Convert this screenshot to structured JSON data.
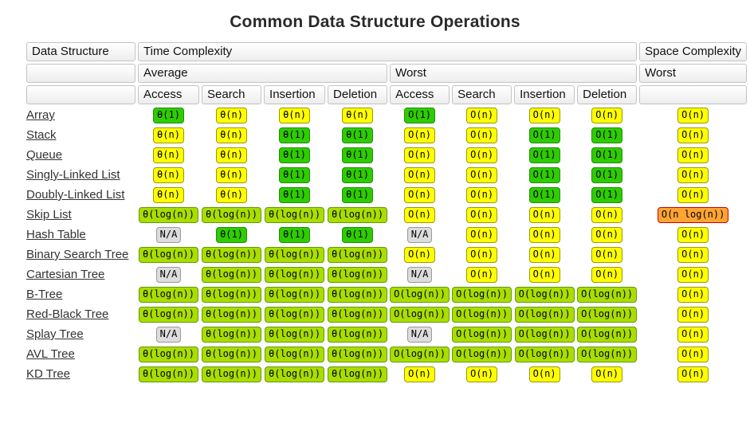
{
  "page": {
    "title": "Common Data Structure Operations"
  },
  "colors": {
    "green": {
      "bg": "#2ecc00",
      "border": "#1d8f00"
    },
    "yellowgreen": {
      "bg": "#aadd00",
      "border": "#5f9b00"
    },
    "yellow": {
      "bg": "#ffff00",
      "border": "#999900"
    },
    "orange": {
      "bg": "#ffa433",
      "border": "#cc0000"
    },
    "gray": {
      "bg": "#dddddd",
      "border": "#999999"
    }
  },
  "table": {
    "headers": {
      "data_structure": "Data Structure",
      "time_complexity": "Time Complexity",
      "space_complexity": "Space Complexity",
      "average": "Average",
      "worst": "Worst",
      "space_worst": "Worst",
      "operations": [
        "Access",
        "Search",
        "Insertion",
        "Deletion"
      ]
    },
    "rows": [
      {
        "name": "Array",
        "average": [
          {
            "text": "θ(1)",
            "color": "green"
          },
          {
            "text": "θ(n)",
            "color": "yellow"
          },
          {
            "text": "θ(n)",
            "color": "yellow"
          },
          {
            "text": "θ(n)",
            "color": "yellow"
          }
        ],
        "worst": [
          {
            "text": "O(1)",
            "color": "green"
          },
          {
            "text": "O(n)",
            "color": "yellow"
          },
          {
            "text": "O(n)",
            "color": "yellow"
          },
          {
            "text": "O(n)",
            "color": "yellow"
          }
        ],
        "space": {
          "text": "O(n)",
          "color": "yellow"
        }
      },
      {
        "name": "Stack",
        "average": [
          {
            "text": "θ(n)",
            "color": "yellow"
          },
          {
            "text": "θ(n)",
            "color": "yellow"
          },
          {
            "text": "θ(1)",
            "color": "green"
          },
          {
            "text": "θ(1)",
            "color": "green"
          }
        ],
        "worst": [
          {
            "text": "O(n)",
            "color": "yellow"
          },
          {
            "text": "O(n)",
            "color": "yellow"
          },
          {
            "text": "O(1)",
            "color": "green"
          },
          {
            "text": "O(1)",
            "color": "green"
          }
        ],
        "space": {
          "text": "O(n)",
          "color": "yellow"
        }
      },
      {
        "name": "Queue",
        "average": [
          {
            "text": "θ(n)",
            "color": "yellow"
          },
          {
            "text": "θ(n)",
            "color": "yellow"
          },
          {
            "text": "θ(1)",
            "color": "green"
          },
          {
            "text": "θ(1)",
            "color": "green"
          }
        ],
        "worst": [
          {
            "text": "O(n)",
            "color": "yellow"
          },
          {
            "text": "O(n)",
            "color": "yellow"
          },
          {
            "text": "O(1)",
            "color": "green"
          },
          {
            "text": "O(1)",
            "color": "green"
          }
        ],
        "space": {
          "text": "O(n)",
          "color": "yellow"
        }
      },
      {
        "name": "Singly-Linked List",
        "average": [
          {
            "text": "θ(n)",
            "color": "yellow"
          },
          {
            "text": "θ(n)",
            "color": "yellow"
          },
          {
            "text": "θ(1)",
            "color": "green"
          },
          {
            "text": "θ(1)",
            "color": "green"
          }
        ],
        "worst": [
          {
            "text": "O(n)",
            "color": "yellow"
          },
          {
            "text": "O(n)",
            "color": "yellow"
          },
          {
            "text": "O(1)",
            "color": "green"
          },
          {
            "text": "O(1)",
            "color": "green"
          }
        ],
        "space": {
          "text": "O(n)",
          "color": "yellow"
        }
      },
      {
        "name": "Doubly-Linked List",
        "average": [
          {
            "text": "θ(n)",
            "color": "yellow"
          },
          {
            "text": "θ(n)",
            "color": "yellow"
          },
          {
            "text": "θ(1)",
            "color": "green"
          },
          {
            "text": "θ(1)",
            "color": "green"
          }
        ],
        "worst": [
          {
            "text": "O(n)",
            "color": "yellow"
          },
          {
            "text": "O(n)",
            "color": "yellow"
          },
          {
            "text": "O(1)",
            "color": "green"
          },
          {
            "text": "O(1)",
            "color": "green"
          }
        ],
        "space": {
          "text": "O(n)",
          "color": "yellow"
        }
      },
      {
        "name": "Skip List",
        "average": [
          {
            "text": "θ(log(n))",
            "color": "yellowgreen"
          },
          {
            "text": "θ(log(n))",
            "color": "yellowgreen"
          },
          {
            "text": "θ(log(n))",
            "color": "yellowgreen"
          },
          {
            "text": "θ(log(n))",
            "color": "yellowgreen"
          }
        ],
        "worst": [
          {
            "text": "O(n)",
            "color": "yellow"
          },
          {
            "text": "O(n)",
            "color": "yellow"
          },
          {
            "text": "O(n)",
            "color": "yellow"
          },
          {
            "text": "O(n)",
            "color": "yellow"
          }
        ],
        "space": {
          "text": "O(n log(n))",
          "color": "orange"
        }
      },
      {
        "name": "Hash Table",
        "average": [
          {
            "text": "N/A",
            "color": "gray"
          },
          {
            "text": "θ(1)",
            "color": "green"
          },
          {
            "text": "θ(1)",
            "color": "green"
          },
          {
            "text": "θ(1)",
            "color": "green"
          }
        ],
        "worst": [
          {
            "text": "N/A",
            "color": "gray"
          },
          {
            "text": "O(n)",
            "color": "yellow"
          },
          {
            "text": "O(n)",
            "color": "yellow"
          },
          {
            "text": "O(n)",
            "color": "yellow"
          }
        ],
        "space": {
          "text": "O(n)",
          "color": "yellow"
        }
      },
      {
        "name": "Binary Search Tree",
        "average": [
          {
            "text": "θ(log(n))",
            "color": "yellowgreen"
          },
          {
            "text": "θ(log(n))",
            "color": "yellowgreen"
          },
          {
            "text": "θ(log(n))",
            "color": "yellowgreen"
          },
          {
            "text": "θ(log(n))",
            "color": "yellowgreen"
          }
        ],
        "worst": [
          {
            "text": "O(n)",
            "color": "yellow"
          },
          {
            "text": "O(n)",
            "color": "yellow"
          },
          {
            "text": "O(n)",
            "color": "yellow"
          },
          {
            "text": "O(n)",
            "color": "yellow"
          }
        ],
        "space": {
          "text": "O(n)",
          "color": "yellow"
        }
      },
      {
        "name": "Cartesian Tree",
        "average": [
          {
            "text": "N/A",
            "color": "gray"
          },
          {
            "text": "θ(log(n))",
            "color": "yellowgreen"
          },
          {
            "text": "θ(log(n))",
            "color": "yellowgreen"
          },
          {
            "text": "θ(log(n))",
            "color": "yellowgreen"
          }
        ],
        "worst": [
          {
            "text": "N/A",
            "color": "gray"
          },
          {
            "text": "O(n)",
            "color": "yellow"
          },
          {
            "text": "O(n)",
            "color": "yellow"
          },
          {
            "text": "O(n)",
            "color": "yellow"
          }
        ],
        "space": {
          "text": "O(n)",
          "color": "yellow"
        }
      },
      {
        "name": "B-Tree",
        "average": [
          {
            "text": "θ(log(n))",
            "color": "yellowgreen"
          },
          {
            "text": "θ(log(n))",
            "color": "yellowgreen"
          },
          {
            "text": "θ(log(n))",
            "color": "yellowgreen"
          },
          {
            "text": "θ(log(n))",
            "color": "yellowgreen"
          }
        ],
        "worst": [
          {
            "text": "O(log(n))",
            "color": "yellowgreen"
          },
          {
            "text": "O(log(n))",
            "color": "yellowgreen"
          },
          {
            "text": "O(log(n))",
            "color": "yellowgreen"
          },
          {
            "text": "O(log(n))",
            "color": "yellowgreen"
          }
        ],
        "space": {
          "text": "O(n)",
          "color": "yellow"
        }
      },
      {
        "name": "Red-Black Tree",
        "average": [
          {
            "text": "θ(log(n))",
            "color": "yellowgreen"
          },
          {
            "text": "θ(log(n))",
            "color": "yellowgreen"
          },
          {
            "text": "θ(log(n))",
            "color": "yellowgreen"
          },
          {
            "text": "θ(log(n))",
            "color": "yellowgreen"
          }
        ],
        "worst": [
          {
            "text": "O(log(n))",
            "color": "yellowgreen"
          },
          {
            "text": "O(log(n))",
            "color": "yellowgreen"
          },
          {
            "text": "O(log(n))",
            "color": "yellowgreen"
          },
          {
            "text": "O(log(n))",
            "color": "yellowgreen"
          }
        ],
        "space": {
          "text": "O(n)",
          "color": "yellow"
        }
      },
      {
        "name": "Splay Tree",
        "average": [
          {
            "text": "N/A",
            "color": "gray"
          },
          {
            "text": "θ(log(n))",
            "color": "yellowgreen"
          },
          {
            "text": "θ(log(n))",
            "color": "yellowgreen"
          },
          {
            "text": "θ(log(n))",
            "color": "yellowgreen"
          }
        ],
        "worst": [
          {
            "text": "N/A",
            "color": "gray"
          },
          {
            "text": "O(log(n))",
            "color": "yellowgreen"
          },
          {
            "text": "O(log(n))",
            "color": "yellowgreen"
          },
          {
            "text": "O(log(n))",
            "color": "yellowgreen"
          }
        ],
        "space": {
          "text": "O(n)",
          "color": "yellow"
        }
      },
      {
        "name": "AVL Tree",
        "average": [
          {
            "text": "θ(log(n))",
            "color": "yellowgreen"
          },
          {
            "text": "θ(log(n))",
            "color": "yellowgreen"
          },
          {
            "text": "θ(log(n))",
            "color": "yellowgreen"
          },
          {
            "text": "θ(log(n))",
            "color": "yellowgreen"
          }
        ],
        "worst": [
          {
            "text": "O(log(n))",
            "color": "yellowgreen"
          },
          {
            "text": "O(log(n))",
            "color": "yellowgreen"
          },
          {
            "text": "O(log(n))",
            "color": "yellowgreen"
          },
          {
            "text": "O(log(n))",
            "color": "yellowgreen"
          }
        ],
        "space": {
          "text": "O(n)",
          "color": "yellow"
        }
      },
      {
        "name": "KD Tree",
        "average": [
          {
            "text": "θ(log(n))",
            "color": "yellowgreen"
          },
          {
            "text": "θ(log(n))",
            "color": "yellowgreen"
          },
          {
            "text": "θ(log(n))",
            "color": "yellowgreen"
          },
          {
            "text": "θ(log(n))",
            "color": "yellowgreen"
          }
        ],
        "worst": [
          {
            "text": "O(n)",
            "color": "yellow"
          },
          {
            "text": "O(n)",
            "color": "yellow"
          },
          {
            "text": "O(n)",
            "color": "yellow"
          },
          {
            "text": "O(n)",
            "color": "yellow"
          }
        ],
        "space": {
          "text": "O(n)",
          "color": "yellow"
        }
      }
    ]
  }
}
